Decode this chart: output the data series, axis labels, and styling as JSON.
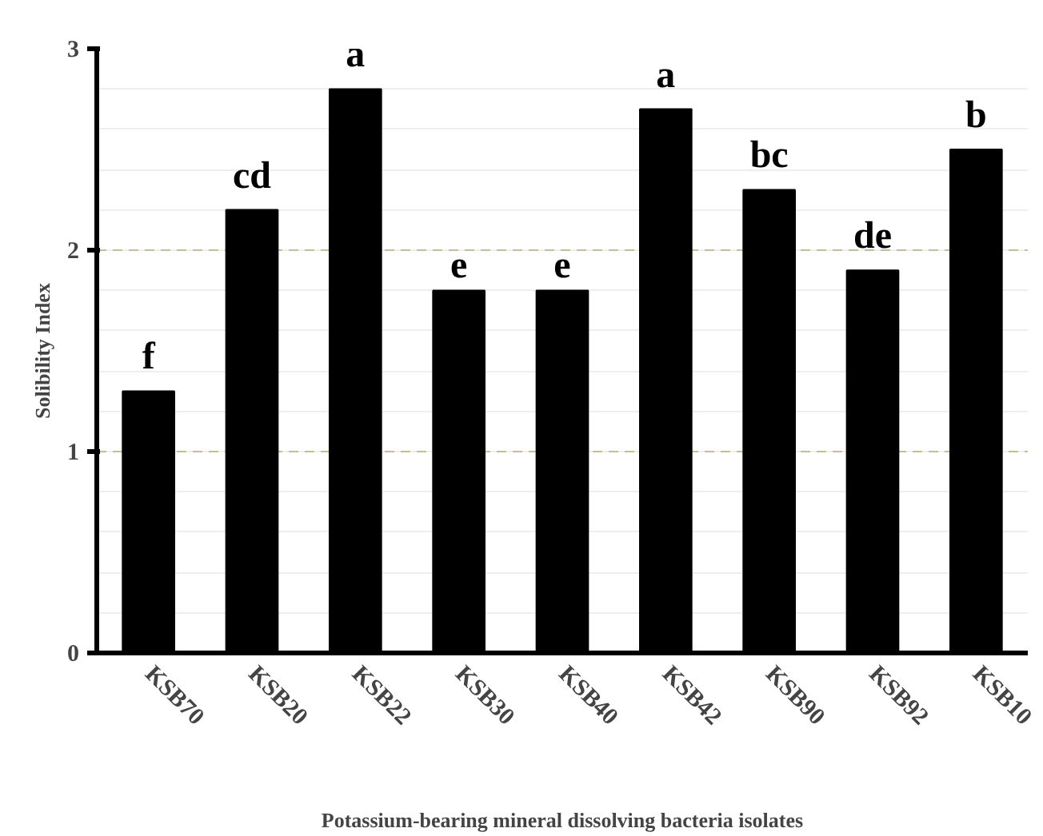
{
  "chart_data": {
    "type": "bar",
    "xlabel": "Potassium-bearing mineral dissolving bacteria isolates",
    "ylabel": "Solibility Index",
    "categories": [
      "KSB70",
      "KSB20",
      "KSB22",
      "KSB30",
      "KSB40",
      "KSB42",
      "KSB90",
      "KSB92",
      "KSB10"
    ],
    "values": [
      1.3,
      2.2,
      2.8,
      1.8,
      1.8,
      2.7,
      2.3,
      1.9,
      2.5
    ],
    "value_labels": [
      "f",
      "cd",
      "a",
      "e",
      "e",
      "a",
      "bc",
      "de",
      "b"
    ],
    "color": "#000000",
    "ylim": [
      0,
      3
    ],
    "yticks": [
      0,
      1,
      2,
      3
    ],
    "grid": "y"
  }
}
